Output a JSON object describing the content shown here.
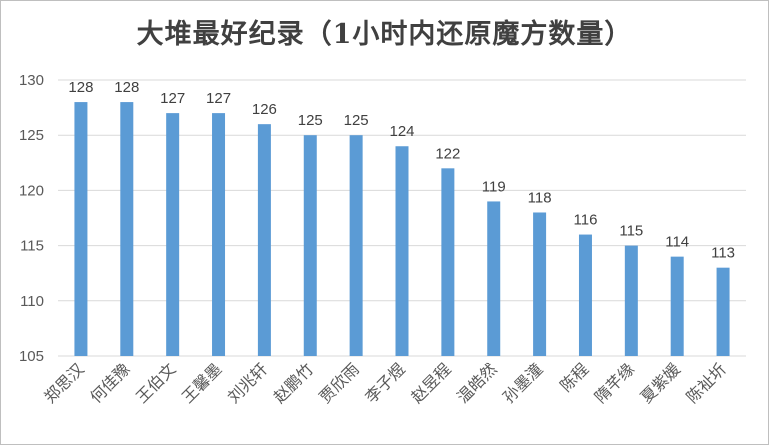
{
  "chart_data": {
    "type": "bar",
    "title": "大堆最好纪录（1小时内还原魔方数量）",
    "categories": [
      "郑思汉",
      "何佳豫",
      "王伯文",
      "王馨墨",
      "刘兆轩",
      "赵鹏竹",
      "贾欣雨",
      "李子煜",
      "赵昱程",
      "温皓然",
      "孙墨潼",
      "陈程",
      "隋芊缘",
      "夏紫媛",
      "陈祉圻"
    ],
    "values": [
      128,
      128,
      127,
      127,
      126,
      125,
      125,
      124,
      122,
      119,
      118,
      116,
      115,
      114,
      113
    ],
    "ylim": [
      105,
      130
    ],
    "yticks": [
      105,
      110,
      115,
      120,
      125,
      130
    ],
    "grid": true,
    "legend": "none",
    "xlabel": "",
    "ylabel": "",
    "bar_color": "#5b9bd5"
  }
}
